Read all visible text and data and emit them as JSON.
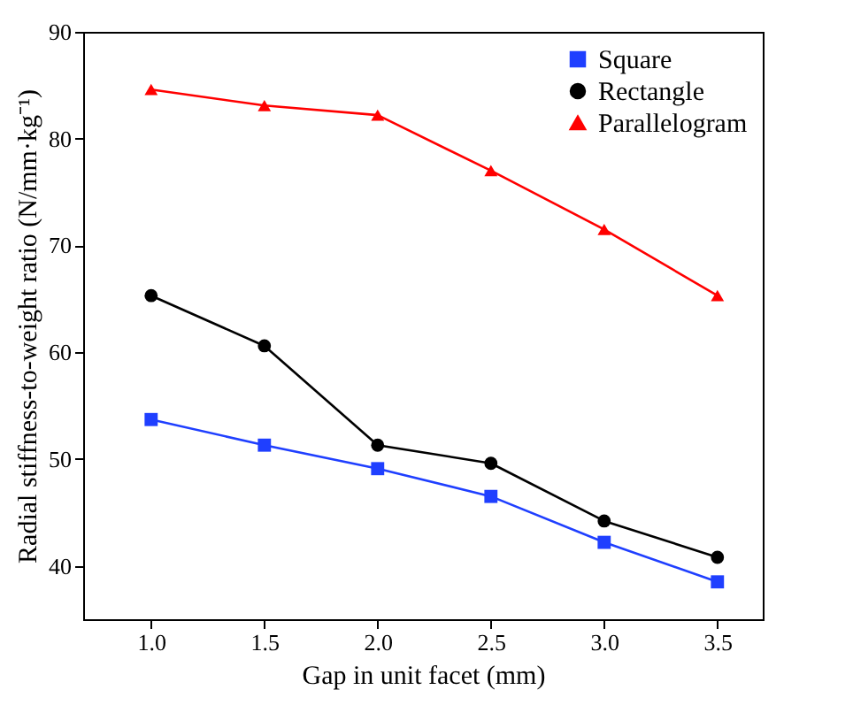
{
  "chart_data": {
    "type": "line",
    "xlabel": "Gap in unit facet (mm)",
    "ylabel": "Radial stiffness-to-weight ratio (N/mm·kg⁻¹)",
    "x": [
      1.0,
      1.5,
      2.0,
      2.5,
      3.0,
      3.5
    ],
    "xlim": [
      0.7,
      3.7
    ],
    "xticks": [
      {
        "value": 1,
        "label": "1.0"
      },
      {
        "value": 1.5,
        "label": "1.5"
      },
      {
        "value": 2,
        "label": "2.0"
      },
      {
        "value": 2.5,
        "label": "2.5"
      },
      {
        "value": 3,
        "label": "3.0"
      },
      {
        "value": 3.5,
        "label": "3.5"
      }
    ],
    "ylim": [
      35,
      90
    ],
    "yticks": [
      40,
      50,
      60,
      70,
      80,
      90
    ],
    "legend": "top right",
    "grid": false,
    "line_style": "solid",
    "series": [
      {
        "name": "Square",
        "color": "#1f3fff",
        "marker": "square",
        "values": [
          53.7,
          51.3,
          49.1,
          46.5,
          42.2,
          38.5
        ]
      },
      {
        "name": "Rectangle",
        "color": "#000000",
        "marker": "circle",
        "values": [
          65.3,
          60.6,
          51.3,
          49.6,
          44.2,
          40.8
        ]
      },
      {
        "name": "Parallelogram",
        "color": "#ff0000",
        "marker": "triangle",
        "values": [
          84.6,
          83.1,
          82.2,
          77.0,
          71.5,
          65.3
        ]
      }
    ]
  }
}
